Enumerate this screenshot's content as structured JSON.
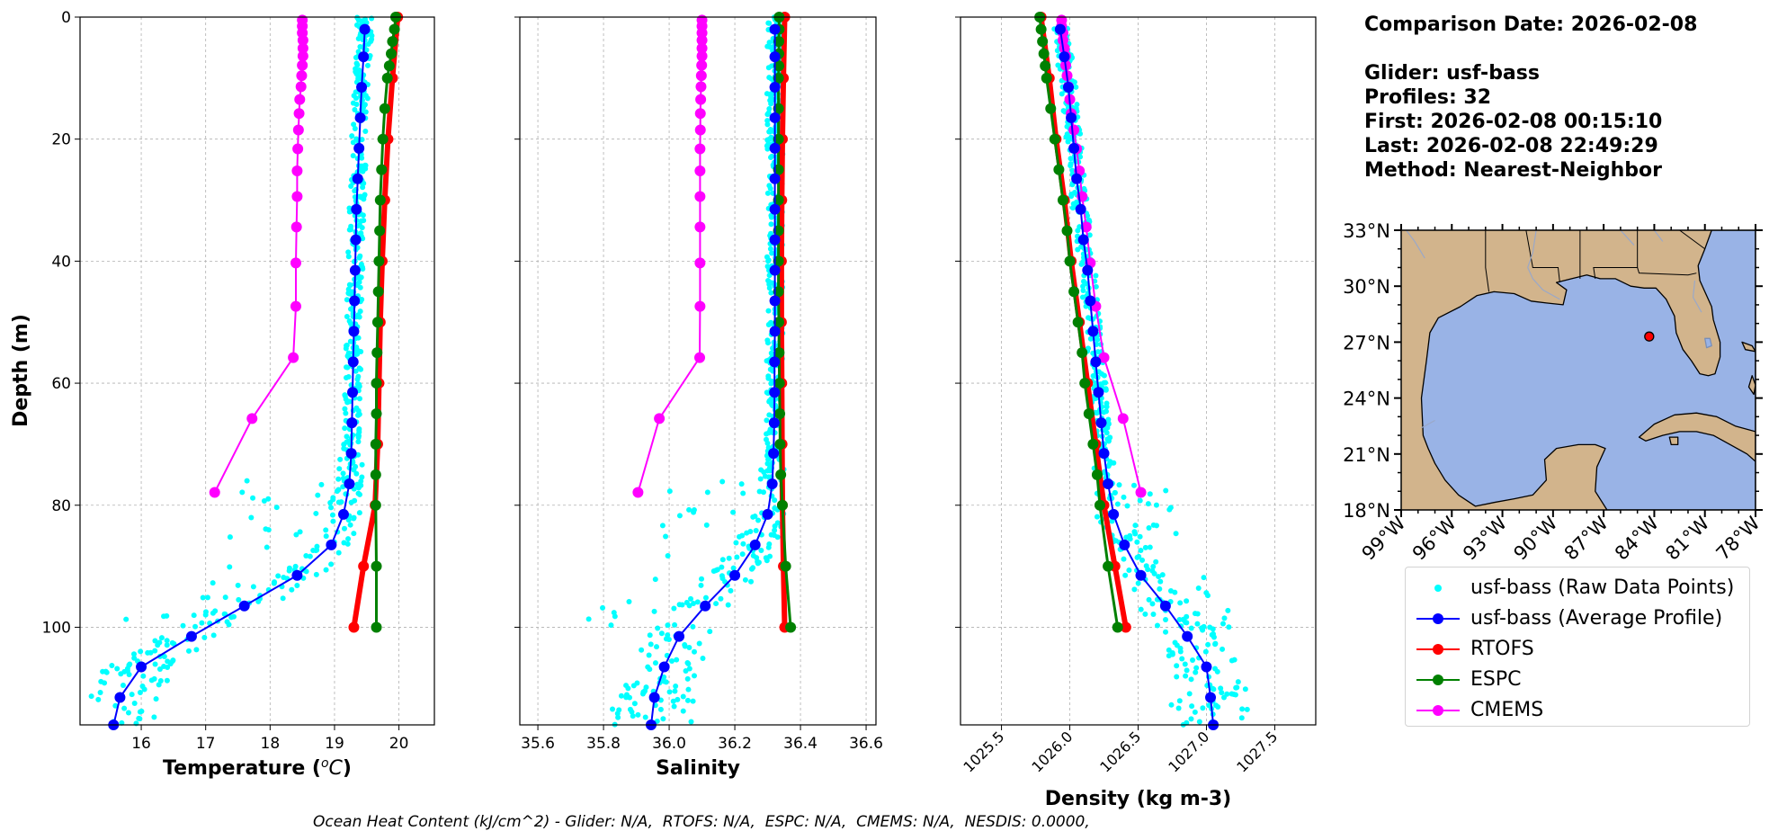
{
  "info": {
    "comparison_date": "Comparison Date: 2026-02-08",
    "glider": "Glider: usf-bass",
    "profiles": "Profiles: 32",
    "first": "First: 2026-02-08 00:15:10",
    "last": "Last: 2026-02-08 22:49:29",
    "method": "Method: Nearest-Neighbor"
  },
  "footer": "Ocean Heat Content (kJ/cm^2) - Glider: N/A,  RTOFS: N/A,  ESPC: N/A,  CMEMS: N/A,  NESDIS: 0.0000,",
  "legend": [
    {
      "label": "usf-bass (Raw Data Points)",
      "color": "#00ffff",
      "style": "points"
    },
    {
      "label": "usf-bass (Average Profile)",
      "color": "#0000ff",
      "style": "line"
    },
    {
      "label": "RTOFS",
      "color": "#ff0000",
      "style": "line"
    },
    {
      "label": "ESPC",
      "color": "#008000",
      "style": "line"
    },
    {
      "label": "CMEMS",
      "color": "#ff00ff",
      "style": "line"
    }
  ],
  "colors": {
    "raw": "#00ffff",
    "glider": "#0000ff",
    "rtofs": "#ff0000",
    "espc": "#008000",
    "cmems": "#ff00ff",
    "land": "#d2b48c",
    "ocean": "#99b3e6"
  },
  "chart_data": [
    {
      "type": "line",
      "xlabel": "Temperature (°C)",
      "ylabel": "Depth (m)",
      "xlim": [
        15.05,
        20.55
      ],
      "ylim": [
        116,
        0
      ],
      "xticks": [
        16,
        17,
        18,
        19,
        20
      ],
      "yticks": [
        0,
        20,
        40,
        60,
        80,
        100
      ],
      "grid": true,
      "depths": [
        2,
        6.5,
        11.5,
        16.5,
        21.5,
        26.5,
        31.5,
        36.5,
        41.5,
        46.5,
        51.5,
        56.5,
        61.5,
        66.5,
        71.5,
        76.5,
        81.5,
        86.5,
        91.5,
        96.5,
        101.5,
        106.5,
        111.5,
        116
      ],
      "series": [
        {
          "name": "usf-bass (Average Profile)",
          "values": [
            19.47,
            19.45,
            19.42,
            19.4,
            19.38,
            19.36,
            19.34,
            19.33,
            19.32,
            19.31,
            19.3,
            19.29,
            19.28,
            19.27,
            19.26,
            19.23,
            19.14,
            18.95,
            18.42,
            17.6,
            16.78,
            16.0,
            15.67,
            15.57
          ]
        },
        {
          "name": "RTOFS",
          "depths": [
            0,
            10,
            20,
            30,
            40,
            50,
            60,
            70,
            80,
            90,
            100
          ],
          "values": [
            19.98,
            19.9,
            19.83,
            19.78,
            19.74,
            19.71,
            19.69,
            19.67,
            19.63,
            19.45,
            19.3
          ]
        },
        {
          "name": "ESPC",
          "depths": [
            0,
            2,
            4,
            6,
            8,
            10,
            15,
            20,
            25,
            30,
            35,
            40,
            45,
            50,
            55,
            60,
            65,
            70,
            75,
            80,
            90,
            100
          ],
          "values": [
            19.95,
            19.93,
            19.9,
            19.88,
            19.85,
            19.82,
            19.78,
            19.75,
            19.73,
            19.71,
            19.7,
            19.69,
            19.68,
            19.67,
            19.66,
            19.65,
            19.65,
            19.64,
            19.64,
            19.64,
            19.65,
            19.65
          ]
        },
        {
          "name": "CMEMS",
          "depths": [
            0.5,
            1.5,
            2.6,
            3.8,
            5.1,
            6.4,
            7.9,
            9.6,
            11.4,
            13.5,
            15.8,
            18.5,
            21.6,
            25.2,
            29.4,
            34.4,
            40.3,
            47.4,
            55.8,
            65.8,
            77.9
          ],
          "values": [
            18.5,
            18.5,
            18.5,
            18.51,
            18.51,
            18.51,
            18.5,
            18.49,
            18.48,
            18.46,
            18.45,
            18.44,
            18.43,
            18.42,
            18.42,
            18.41,
            18.4,
            18.4,
            18.36,
            17.72,
            17.14
          ]
        }
      ]
    },
    {
      "type": "line",
      "xlabel": "Salinity",
      "xlim": [
        35.545,
        36.63
      ],
      "ylim": [
        116,
        0
      ],
      "xticks": [
        35.6,
        35.8,
        36.0,
        36.2,
        36.4,
        36.6
      ],
      "yticks": [
        0,
        20,
        40,
        60,
        80,
        100
      ],
      "grid": true,
      "depths": [
        2,
        6.5,
        11.5,
        16.5,
        21.5,
        26.5,
        31.5,
        36.5,
        41.5,
        46.5,
        51.5,
        56.5,
        61.5,
        66.5,
        71.5,
        76.5,
        81.5,
        86.5,
        91.5,
        96.5,
        101.5,
        106.5,
        111.5,
        116
      ],
      "series": [
        {
          "name": "usf-bass (Average Profile)",
          "values": [
            36.322,
            36.322,
            36.322,
            36.322,
            36.322,
            36.322,
            36.322,
            36.322,
            36.322,
            36.322,
            36.322,
            36.321,
            36.321,
            36.32,
            36.318,
            36.314,
            36.3,
            36.262,
            36.2,
            36.11,
            36.03,
            35.985,
            35.955,
            35.945
          ]
        },
        {
          "name": "RTOFS",
          "depths": [
            0,
            10,
            20,
            30,
            40,
            50,
            60,
            70,
            80,
            90,
            100
          ],
          "values": [
            36.352,
            36.348,
            36.345,
            36.343,
            36.342,
            36.342,
            36.343,
            36.344,
            36.345,
            36.348,
            36.352
          ]
        },
        {
          "name": "ESPC",
          "depths": [
            0,
            2,
            4,
            6,
            8,
            10,
            15,
            20,
            25,
            30,
            35,
            40,
            45,
            50,
            55,
            60,
            65,
            70,
            75,
            80,
            90,
            100
          ],
          "values": [
            36.335,
            36.335,
            36.334,
            36.334,
            36.334,
            36.333,
            36.333,
            36.333,
            36.333,
            36.333,
            36.333,
            36.333,
            36.333,
            36.334,
            36.335,
            36.336,
            36.337,
            36.338,
            36.34,
            36.345,
            36.355,
            36.37
          ]
        },
        {
          "name": "CMEMS",
          "depths": [
            0.5,
            1.5,
            2.6,
            3.8,
            5.1,
            6.4,
            7.9,
            9.6,
            11.4,
            13.5,
            15.8,
            18.5,
            21.6,
            25.2,
            29.4,
            34.4,
            40.3,
            47.4,
            55.8,
            65.8,
            77.9
          ],
          "values": [
            36.1,
            36.1,
            36.1,
            36.1,
            36.1,
            36.1,
            36.099,
            36.098,
            36.097,
            36.096,
            36.095,
            36.095,
            36.094,
            36.094,
            36.094,
            36.094,
            36.094,
            36.094,
            36.093,
            35.97,
            35.905
          ]
        }
      ]
    },
    {
      "type": "line",
      "xlabel": "Density (kg m-3)",
      "xlim": [
        1025.2,
        1027.8
      ],
      "ylim": [
        116,
        0
      ],
      "xticks": [
        1025.5,
        1026.0,
        1026.5,
        1027.0,
        1027.5
      ],
      "yticks": [
        0,
        20,
        40,
        60,
        80,
        100
      ],
      "grid": true,
      "depths": [
        2,
        6.5,
        11.5,
        16.5,
        21.5,
        26.5,
        31.5,
        36.5,
        41.5,
        46.5,
        51.5,
        56.5,
        61.5,
        66.5,
        71.5,
        76.5,
        81.5,
        86.5,
        91.5,
        96.5,
        101.5,
        106.5,
        111.5,
        116
      ],
      "series": [
        {
          "name": "usf-bass (Average Profile)",
          "values": [
            1025.93,
            1025.96,
            1025.99,
            1026.01,
            1026.03,
            1026.05,
            1026.08,
            1026.1,
            1026.13,
            1026.15,
            1026.17,
            1026.19,
            1026.21,
            1026.23,
            1026.25,
            1026.28,
            1026.32,
            1026.4,
            1026.52,
            1026.7,
            1026.86,
            1027.0,
            1027.03,
            1027.05
          ]
        },
        {
          "name": "RTOFS",
          "depths": [
            0,
            10,
            20,
            30,
            40,
            50,
            60,
            70,
            80,
            90,
            100
          ],
          "values": [
            1025.79,
            1025.85,
            1025.9,
            1025.96,
            1026.01,
            1026.07,
            1026.13,
            1026.19,
            1026.25,
            1026.33,
            1026.41
          ]
        },
        {
          "name": "ESPC",
          "depths": [
            0,
            2,
            4,
            6,
            8,
            10,
            15,
            20,
            25,
            30,
            35,
            40,
            45,
            50,
            55,
            60,
            65,
            70,
            75,
            80,
            90,
            100
          ],
          "values": [
            1025.78,
            1025.79,
            1025.8,
            1025.81,
            1025.82,
            1025.83,
            1025.86,
            1025.89,
            1025.92,
            1025.95,
            1025.98,
            1026.0,
            1026.03,
            1026.06,
            1026.09,
            1026.11,
            1026.14,
            1026.17,
            1026.2,
            1026.22,
            1026.28,
            1026.35
          ]
        },
        {
          "name": "CMEMS",
          "depths": [
            0.5,
            1.5,
            2.6,
            3.8,
            5.1,
            6.4,
            7.9,
            9.6,
            11.4,
            13.5,
            15.8,
            18.5,
            21.6,
            25.2,
            29.4,
            34.4,
            40.3,
            47.4,
            55.8,
            65.8,
            77.9
          ],
          "values": [
            1025.94,
            1025.94,
            1025.95,
            1025.95,
            1025.96,
            1025.97,
            1025.97,
            1025.98,
            1025.99,
            1026.0,
            1026.01,
            1026.03,
            1026.05,
            1026.07,
            1026.09,
            1026.12,
            1026.15,
            1026.19,
            1026.25,
            1026.39,
            1026.52
          ]
        }
      ]
    },
    {
      "type": "map",
      "lon_range": [
        -99,
        -78
      ],
      "lat_range": [
        18,
        33
      ],
      "lon_ticks": [
        "99°W",
        "96°W",
        "93°W",
        "90°W",
        "87°W",
        "84°W",
        "81°W",
        "78°W"
      ],
      "lat_ticks": [
        "33°N",
        "30°N",
        "27°N",
        "24°N",
        "21°N",
        "18°N"
      ],
      "glider_location": {
        "lon": -84.3,
        "lat": 27.3
      }
    }
  ]
}
